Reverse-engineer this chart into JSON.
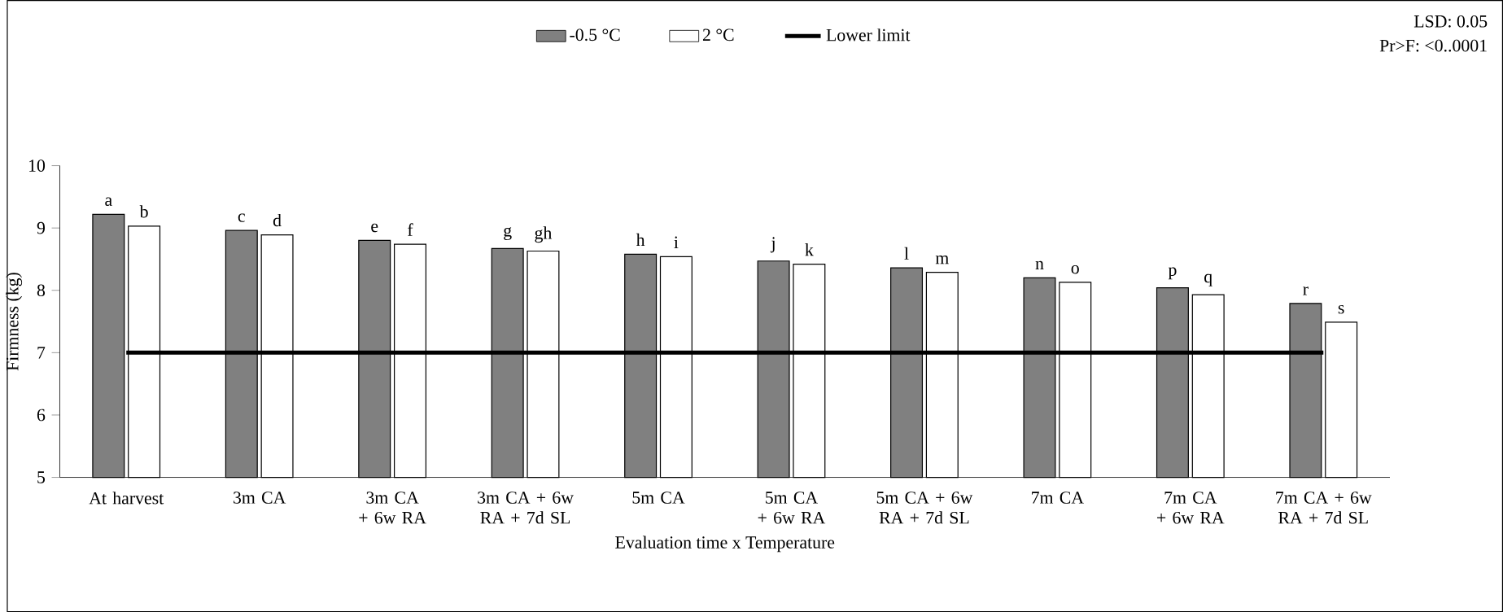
{
  "chart_data": {
    "type": "bar",
    "xlabel": "Evaluation time x Temperature",
    "ylabel": "Firmness (kg)",
    "categories": [
      "At harvest",
      "3m CA",
      "3m CA + 6w RA",
      "3m CA + 6w RA + 7d SL",
      "5m CA",
      "5m CA + 6w RA",
      "5m CA + 6w RA + 7d SL",
      "7m CA",
      "7m CA + 6w RA",
      "7m CA + 6w RA + 7d SL"
    ],
    "series": [
      {
        "name": "-0.5 °C",
        "color": "#808080",
        "values": [
          9.22,
          8.96,
          8.8,
          8.67,
          8.58,
          8.47,
          8.36,
          8.2,
          8.04,
          7.79
        ]
      },
      {
        "name": "2 °C",
        "color": "#ffffff",
        "values": [
          9.03,
          8.89,
          8.74,
          8.63,
          8.54,
          8.42,
          8.29,
          8.13,
          7.93,
          7.49
        ]
      },
      {
        "name": "Lower limit",
        "type": "line",
        "color": "#000000",
        "values": [
          7,
          7,
          7,
          7,
          7,
          7,
          7,
          7,
          7,
          7
        ]
      }
    ],
    "ylim": [
      5,
      10
    ],
    "yticks": [
      5,
      6,
      7,
      8,
      9,
      10
    ],
    "legend": "top",
    "grid": false,
    "annotations": [
      {
        "text": "a",
        "x": "At harvest",
        "y": 9.22
      },
      {
        "text": "b",
        "x": "At harvest",
        "y": 9.03
      },
      {
        "text": "c",
        "x": "3m CA",
        "y": 8.96
      },
      {
        "text": "d",
        "x": "3m CA",
        "y": 8.89
      },
      {
        "text": "e",
        "x": "3m CA + 6w RA",
        "y": 8.8
      },
      {
        "text": "f",
        "x": "3m CA + 6w RA",
        "y": 8.74
      },
      {
        "text": "g",
        "x": "3m CA + 6w RA + 7d SL",
        "y": 8.67
      },
      {
        "text": "gh",
        "x": "3m CA + 6w RA + 7d SL",
        "y": 8.63
      },
      {
        "text": "h",
        "x": "5m CA",
        "y": 8.58
      },
      {
        "text": "i",
        "x": "5m CA",
        "y": 8.54
      },
      {
        "text": "j",
        "x": "5m CA + 6w RA",
        "y": 8.47
      },
      {
        "text": "k",
        "x": "5m CA + 6w RA",
        "y": 8.42
      },
      {
        "text": "l",
        "x": "5m CA + 6w RA + 7d SL",
        "y": 8.36
      },
      {
        "text": "m",
        "x": "5m CA + 6w RA + 7d SL",
        "y": 8.29
      },
      {
        "text": "n",
        "x": "7m CA",
        "y": 8.2
      },
      {
        "text": "o",
        "x": "7m CA",
        "y": 8.13
      },
      {
        "text": "p",
        "x": "7m CA + 6w RA",
        "y": 8.04
      },
      {
        "text": "q",
        "x": "7m CA + 6w RA",
        "y": 7.93
      },
      {
        "text": "r",
        "x": "7m CA + 6w RA + 7d SL",
        "y": 7.79
      },
      {
        "text": "s",
        "x": "7m CA + 6w RA + 7d SL",
        "y": 7.49
      },
      "LSD: 0.05",
      "Pr>F: <0..0001"
    ]
  }
}
